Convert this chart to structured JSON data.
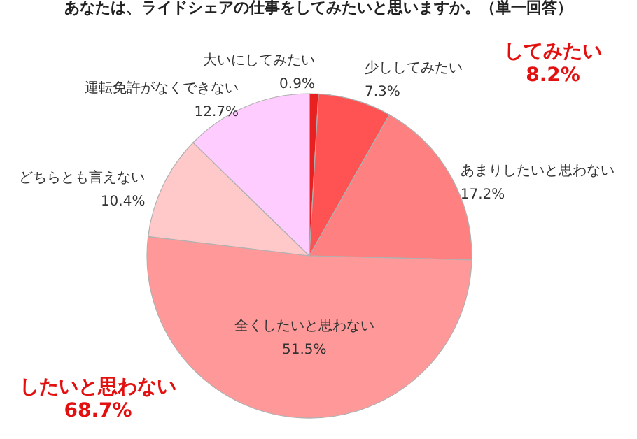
{
  "chart_data": {
    "type": "pie",
    "title": "あなたは、ライドシェアの仕事をしてみたいと思いますか。（単一回答）",
    "categories": [
      "大いにしてみたい",
      "少ししてみたい",
      "あまりしたいと思わない",
      "全くしたいと思わない",
      "どちらとも言えない",
      "運転免許がなくできない"
    ],
    "values": [
      0.9,
      7.3,
      17.2,
      51.5,
      10.4,
      12.7
    ],
    "value_labels": [
      "0.9%",
      "7.3%",
      "17.2%",
      "51.5%",
      "10.4%",
      "12.7%"
    ],
    "colors": [
      "#e82020",
      "#ff5252",
      "#ff8080",
      "#ff9999",
      "#ffc9c9",
      "#ffccff"
    ],
    "annotations": [
      "してみたい\n8.2%",
      "したいと思わない\n68.7%"
    ],
    "legend": false
  }
}
